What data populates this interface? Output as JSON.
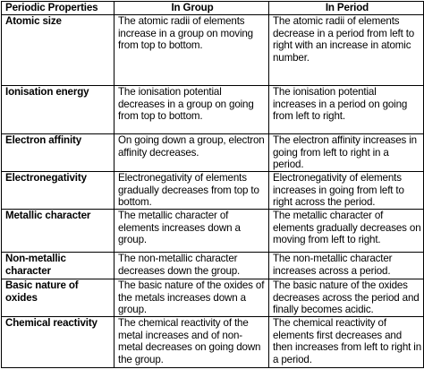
{
  "table": {
    "headers": [
      "Periodic Properties",
      "In Group",
      "In Period"
    ],
    "rows": [
      {
        "property": "Atomic size",
        "group": "The atomic radii of elements increase in a group on moving from top to bottom.",
        "period": "The atomic radii of elements decrease in a period from left to right with an increase in atomic number."
      },
      {
        "property": "Ionisation energy",
        "group": "The ionisation potential decreases in a group on going from top to bottom.",
        "period": "The ionisation potential increases in a period on going from left to right."
      },
      {
        "property": "Electron affinity",
        "group": "On going down a group, electron affinity decreases.",
        "period": "The electron affinity increases in going from left to right in a period."
      },
      {
        "property": "Electronegativity",
        "group": "Electronegativity of elements gradually decreases from top to bottom.",
        "period": "Electronegativity of elements increases in going from left to right across the period."
      },
      {
        "property": "Metallic character",
        "group": "The metallic character of elements increases down a group.",
        "period": "The metallic character of elements gradually decreases on moving from left to right."
      },
      {
        "property": "Non-metallic character",
        "group": "The non-metallic character decreases down the group.",
        "period": "The non-metallic character increases across a period."
      },
      {
        "property": "Basic nature of oxides",
        "group": "The basic nature of the oxides of the metals increases down a group.",
        "period": "The basic nature of the oxides decreases across the period and finally becomes acidic."
      },
      {
        "property": "Chemical reactivity",
        "group": "The chemical reactivity of the metal increases and of non-metal decreases on going down the group.",
        "period": "The chemical reactivity of elements first decreases and then increases from left to right in a period."
      }
    ]
  }
}
